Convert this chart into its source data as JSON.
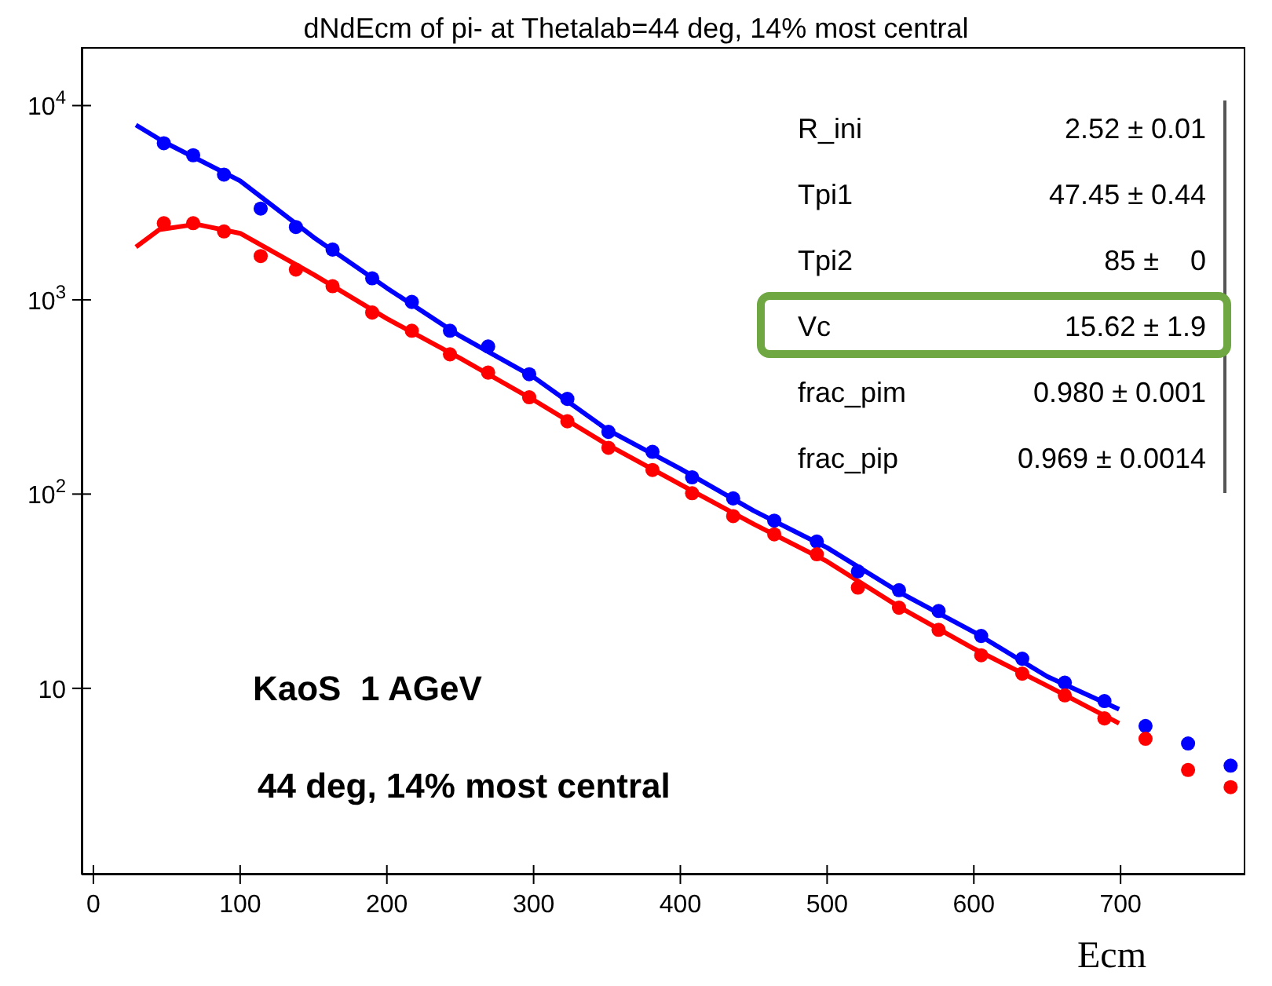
{
  "chart_data": {
    "type": "scatter",
    "title": "dNdEcm of pi- at Thetalab=44 deg, 14% most central",
    "xlabel": "Ecm",
    "x": [
      48,
      68,
      89,
      114,
      138,
      163,
      190,
      217,
      243,
      269,
      297,
      323,
      351,
      381,
      408,
      436,
      464,
      493,
      521,
      549,
      576,
      605,
      633,
      662,
      689,
      717,
      746,
      775
    ],
    "series": [
      {
        "color": "#0000ff",
        "values": [
          6400,
          5550,
          4410,
          2950,
          2370,
          1815,
          1290,
          975,
          693,
          575,
          414,
          309,
          209,
          165,
          122,
          95,
          73,
          57,
          40,
          32,
          25,
          18.6,
          14.2,
          10.7,
          8.6,
          6.4,
          5.2,
          4.0
        ]
      },
      {
        "color": "#ff0000",
        "values": [
          2480,
          2480,
          2250,
          1680,
          1430,
          1175,
          860,
          693,
          524,
          422,
          315,
          237,
          173,
          133,
          101,
          77,
          62,
          49,
          33,
          26,
          20,
          14.8,
          11.9,
          9.2,
          7.0,
          5.5,
          3.8,
          3.1
        ]
      },
      {
        "type": "line",
        "marker": "none",
        "color": "#0000ff",
        "x": [
          29,
          48,
          100,
          150,
          200,
          250,
          300,
          350,
          400,
          450,
          500,
          550,
          600,
          650,
          699
        ],
        "values": [
          7940,
          6500,
          4100,
          2100,
          1150,
          650,
          400,
          215,
          135,
          82,
          53,
          31,
          19.5,
          11.5,
          7.8
        ]
      },
      {
        "type": "line",
        "marker": "none",
        "color": "#ff0000",
        "x": [
          29,
          45,
          70,
          100,
          150,
          200,
          250,
          300,
          350,
          400,
          450,
          500,
          550,
          600,
          650,
          699
        ],
        "values": [
          1870,
          2300,
          2450,
          2200,
          1350,
          800,
          500,
          305,
          180,
          112,
          70,
          45,
          26,
          16,
          10.3,
          6.6
        ]
      }
    ],
    "xlim": [
      -8,
      785
    ],
    "xticks": [
      0,
      100,
      200,
      300,
      400,
      500,
      600,
      700
    ],
    "ylim": [
      1.1,
      20000
    ],
    "yticks": [
      {
        "value": 10,
        "label": "10"
      },
      {
        "value": 100,
        "label": "10$^{2}$"
      },
      {
        "value": 1000,
        "label": "10$^{3}$"
      },
      {
        "value": 10000,
        "label": "10$^{4}$"
      }
    ],
    "log": "y",
    "marker": "circle",
    "line_style": "solid",
    "annotations": [
      "R_ini",
      "2.52 ± 0.01",
      "Tpi1",
      "47.45 ± 0.44",
      "Tpi2",
      "85 ±    0",
      "Vc",
      "15.62 ± 1.9",
      "frac_pim",
      "0.980 ± 0.001",
      "frac_pip",
      "0.969 ± 0.0014",
      "KaoS  1 AGeV",
      "44 deg, 14% most central"
    ]
  }
}
